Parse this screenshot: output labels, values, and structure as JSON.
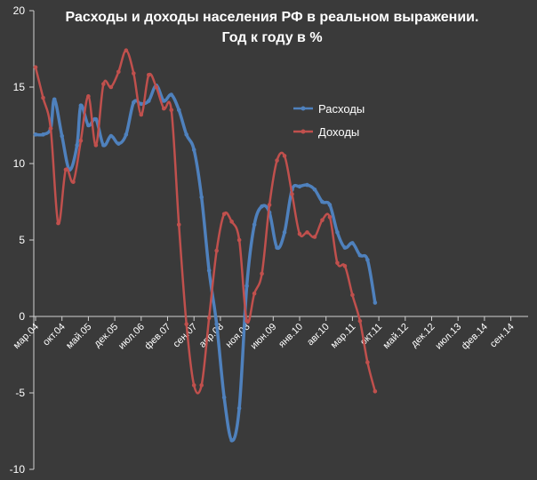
{
  "chart_data": {
    "type": "line",
    "title": "Расходы и доходы населения РФ в реальном выражении.",
    "subtitle": "Год к году в %",
    "xlabel": "",
    "ylabel": "",
    "ylim": [
      -10,
      20
    ],
    "yticks": [
      -10,
      -5,
      0,
      5,
      10,
      15,
      20
    ],
    "grid": false,
    "legend_position": "center-right",
    "x_tick_labels": [
      "мар.04",
      "окт.04",
      "май.05",
      "дек.05",
      "июл.06",
      "фев.07",
      "сен.07",
      "апр.08",
      "ноя.08",
      "июн.09",
      "янв.10",
      "авг.10",
      "мар.11",
      "окт.11",
      "май.12",
      "дек.12",
      "июл.13",
      "фев.14",
      "сен.14"
    ],
    "x_tick_start": "2004-03",
    "x_tick_step_months": 7,
    "series": [
      {
        "name": "Расходы",
        "color": "#4f81bd",
        "points": [
          [
            "2004-03",
            11.9
          ],
          [
            "2004-05",
            11.9
          ],
          [
            "2004-07",
            12.3
          ],
          [
            "2004-08",
            14.2
          ],
          [
            "2004-10",
            11.8
          ],
          [
            "2004-12",
            9.6
          ],
          [
            "2005-02",
            11.2
          ],
          [
            "2005-03",
            13.8
          ],
          [
            "2005-05",
            12.5
          ],
          [
            "2005-07",
            12.9
          ],
          [
            "2005-09",
            11.2
          ],
          [
            "2005-11",
            11.8
          ],
          [
            "2006-01",
            11.3
          ],
          [
            "2006-03",
            11.9
          ],
          [
            "2006-05",
            14.0
          ],
          [
            "2006-07",
            13.9
          ],
          [
            "2006-09",
            14.1
          ],
          [
            "2006-11",
            15.1
          ],
          [
            "2007-01",
            14.1
          ],
          [
            "2007-03",
            14.5
          ],
          [
            "2007-05",
            13.5
          ],
          [
            "2007-07",
            11.9
          ],
          [
            "2007-09",
            10.9
          ],
          [
            "2007-11",
            7.8
          ],
          [
            "2008-01",
            3.0
          ],
          [
            "2008-03",
            -0.5
          ],
          [
            "2008-05",
            -5.3
          ],
          [
            "2008-07",
            -8.1
          ],
          [
            "2008-09",
            -6.0
          ],
          [
            "2008-11",
            2.0
          ],
          [
            "2009-01",
            6.0
          ],
          [
            "2009-03",
            7.2
          ],
          [
            "2009-05",
            6.8
          ],
          [
            "2009-07",
            4.5
          ],
          [
            "2009-09",
            5.5
          ],
          [
            "2009-11",
            8.3
          ],
          [
            "2010-01",
            8.5
          ],
          [
            "2010-03",
            8.6
          ],
          [
            "2010-05",
            8.3
          ],
          [
            "2010-07",
            7.5
          ],
          [
            "2010-09",
            7.3
          ],
          [
            "2010-11",
            5.5
          ],
          [
            "2011-01",
            4.5
          ],
          [
            "2011-03",
            4.8
          ],
          [
            "2011-05",
            4.0
          ],
          [
            "2011-07",
            3.7
          ],
          [
            "2011-09",
            0.9
          ]
        ]
      },
      {
        "name": "Доходы",
        "color": "#c0504d",
        "points": [
          [
            "2004-03",
            16.3
          ],
          [
            "2004-05",
            14.3
          ],
          [
            "2004-07",
            12.3
          ],
          [
            "2004-09",
            6.1
          ],
          [
            "2004-11",
            9.6
          ],
          [
            "2005-01",
            8.8
          ],
          [
            "2005-03",
            11.5
          ],
          [
            "2005-05",
            14.4
          ],
          [
            "2005-07",
            11.2
          ],
          [
            "2005-09",
            15.2
          ],
          [
            "2005-11",
            15.0
          ],
          [
            "2006-01",
            16.0
          ],
          [
            "2006-03",
            17.4
          ],
          [
            "2006-05",
            15.9
          ],
          [
            "2006-07",
            13.2
          ],
          [
            "2006-09",
            15.8
          ],
          [
            "2006-11",
            15.0
          ],
          [
            "2007-01",
            13.6
          ],
          [
            "2007-03",
            13.5
          ],
          [
            "2007-05",
            6.0
          ],
          [
            "2007-07",
            -0.5
          ],
          [
            "2007-09",
            -4.5
          ],
          [
            "2007-11",
            -4.5
          ],
          [
            "2008-01",
            -0.1
          ],
          [
            "2008-03",
            4.3
          ],
          [
            "2008-05",
            6.7
          ],
          [
            "2008-07",
            6.2
          ],
          [
            "2008-09",
            5.0
          ],
          [
            "2008-11",
            -0.3
          ],
          [
            "2009-01",
            1.5
          ],
          [
            "2009-03",
            2.8
          ],
          [
            "2009-05",
            7.3
          ],
          [
            "2009-07",
            10.2
          ],
          [
            "2009-09",
            10.5
          ],
          [
            "2009-11",
            8.0
          ],
          [
            "2010-01",
            5.4
          ],
          [
            "2010-03",
            5.5
          ],
          [
            "2010-05",
            5.2
          ],
          [
            "2010-07",
            6.3
          ],
          [
            "2010-09",
            6.5
          ],
          [
            "2010-11",
            3.5
          ],
          [
            "2011-01",
            3.3
          ],
          [
            "2011-03",
            1.4
          ],
          [
            "2011-05",
            -0.3
          ],
          [
            "2011-07",
            -3.0
          ],
          [
            "2011-09",
            -4.9
          ]
        ]
      }
    ]
  }
}
